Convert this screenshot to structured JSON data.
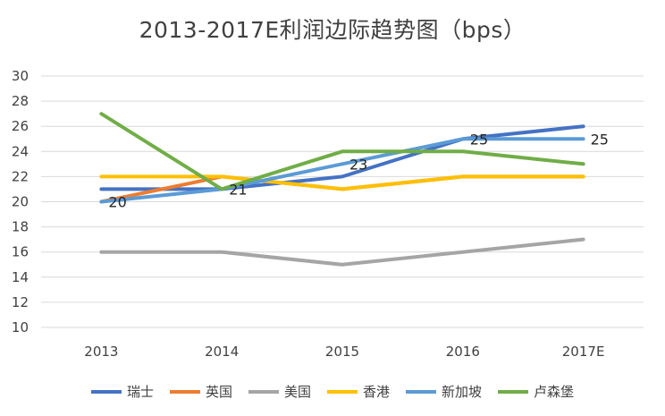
{
  "chart_data": {
    "type": "line",
    "title": "2013-2017E利润边际趋势图（bps）",
    "xlabel": "",
    "ylabel": "",
    "categories": [
      "2013",
      "2014",
      "2015",
      "2016",
      "2017E"
    ],
    "ylim": [
      10,
      30
    ],
    "yticks": [
      10,
      12,
      14,
      16,
      18,
      20,
      22,
      24,
      26,
      28,
      30
    ],
    "grid": true,
    "legend_position": "bottom",
    "series": [
      {
        "name": "瑞士",
        "color": "#4472C4",
        "values": [
          21,
          21,
          22,
          25,
          26
        ]
      },
      {
        "name": "英国",
        "color": "#ED7D31",
        "values": [
          20,
          22,
          21,
          22,
          22
        ]
      },
      {
        "name": "美国",
        "color": "#A5A5A5",
        "values": [
          16,
          16,
          15,
          16,
          17
        ]
      },
      {
        "name": "香港",
        "color": "#FFC000",
        "values": [
          22,
          22,
          21,
          22,
          22
        ]
      },
      {
        "name": "新加坡",
        "color": "#5B9BD5",
        "values": [
          20,
          21,
          23,
          25,
          25
        ]
      },
      {
        "name": "卢森堡",
        "color": "#70AD47",
        "values": [
          27,
          21,
          24,
          24,
          23
        ]
      }
    ],
    "data_labels": [
      {
        "series": "新加坡",
        "category": "2013",
        "text": "20"
      },
      {
        "series": "新加坡",
        "category": "2014",
        "text": "21"
      },
      {
        "series": "新加坡",
        "category": "2015",
        "text": "23"
      },
      {
        "series": "新加坡",
        "category": "2016",
        "text": "25"
      },
      {
        "series": "新加坡",
        "category": "2017E",
        "text": "25"
      }
    ]
  }
}
